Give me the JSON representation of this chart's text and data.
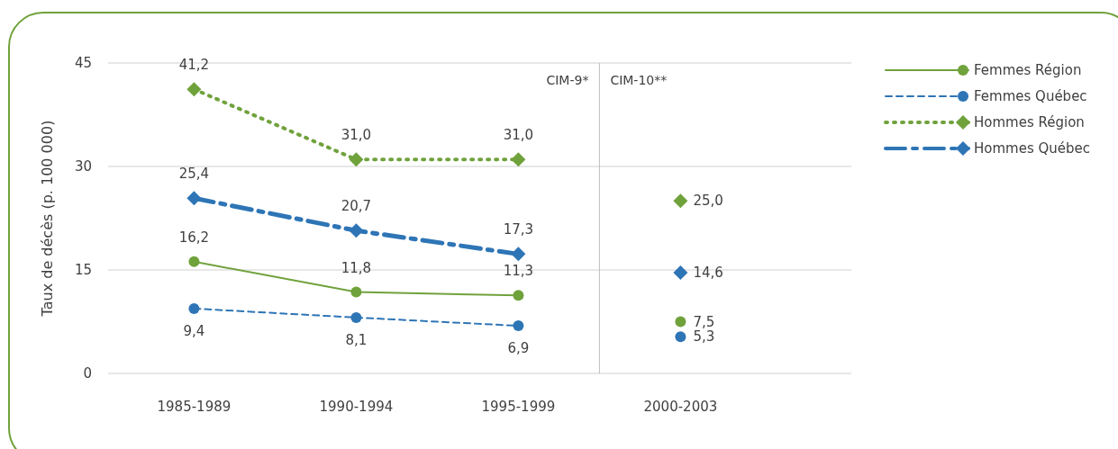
{
  "chart_data": {
    "type": "line",
    "ylabel": "Taux de décès (p. 100 000)",
    "categories": [
      "1985-1989",
      "1990-1994",
      "1995-1999",
      "2000-2003"
    ],
    "ylim": [
      0,
      45
    ],
    "yticks": [
      0,
      15,
      30,
      45
    ],
    "grid": "y",
    "legend": "top right",
    "series": [
      {
        "name": "Femmes Région",
        "color": "#70a23c",
        "marker": "circle",
        "line_style": "solid",
        "values": [
          16.2,
          11.8,
          11.3,
          null
        ],
        "value_labels": [
          "16,2",
          "11,8",
          "11,3",
          null
        ]
      },
      {
        "name": "Femmes Québec",
        "color": "#2e75b6",
        "marker": "circle",
        "line_style": "dashed",
        "values": [
          9.4,
          8.1,
          6.9,
          null
        ],
        "value_labels": [
          "9,4",
          "8,1",
          "6,9",
          null
        ]
      },
      {
        "name": "Hommes Région",
        "color": "#70a23c",
        "marker": "diamond",
        "line_style": "dotted",
        "values": [
          41.2,
          31.0,
          31.0,
          null
        ],
        "value_labels": [
          "41,2",
          "31,0",
          "31,0",
          null
        ]
      },
      {
        "name": "Hommes Québec",
        "color": "#2e75b6",
        "marker": "diamond",
        "line_style": "dashdot",
        "values": [
          25.4,
          20.7,
          17.3,
          null
        ],
        "value_labels": [
          "25,4",
          "20,7",
          "17,3",
          null
        ]
      },
      {
        "type": "scatter",
        "color": "#70a23c",
        "marker": "diamond",
        "x": [
          "2000-2003"
        ],
        "values": [
          25.0
        ],
        "value_labels": [
          "25,0"
        ]
      },
      {
        "type": "scatter",
        "color": "#2e75b6",
        "marker": "diamond",
        "x": [
          "2000-2003"
        ],
        "values": [
          14.6
        ],
        "value_labels": [
          "14,6"
        ]
      },
      {
        "type": "scatter",
        "color": "#70a23c",
        "marker": "circle",
        "x": [
          "2000-2003"
        ],
        "values": [
          7.5
        ],
        "value_labels": [
          "7,5"
        ]
      },
      {
        "type": "scatter",
        "color": "#2e75b6",
        "marker": "circle",
        "x": [
          "2000-2003"
        ],
        "values": [
          5.3
        ],
        "value_labels": [
          "5,3"
        ]
      }
    ],
    "ref_lines": [
      {
        "axis": "x",
        "value": "2000-2003",
        "color": "#bfbfbf"
      }
    ],
    "annotations": [
      "CIM-9*",
      "CIM-10**"
    ]
  }
}
